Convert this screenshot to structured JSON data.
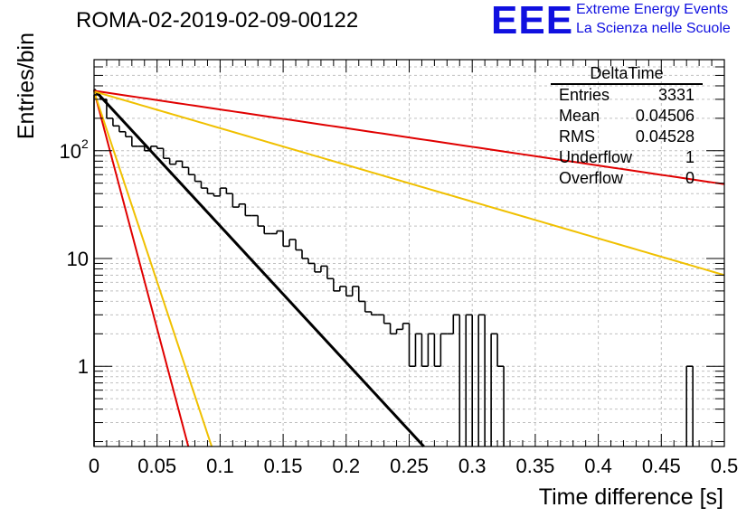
{
  "title": "ROMA-02-2019-02-09-00122",
  "logo": {
    "mark": "EEE",
    "line1": "Extreme Energy Events",
    "line2": "La Scienza nelle Scuole",
    "color": "#1010e0"
  },
  "stats": {
    "name": "DeltaTime",
    "rows": [
      {
        "label": "Entries",
        "value": "3331"
      },
      {
        "label": "Mean",
        "value": "0.04506"
      },
      {
        "label": "RMS",
        "value": "0.04528"
      },
      {
        "label": "Underflow",
        "value": "1"
      },
      {
        "label": "Overflow",
        "value": "0"
      }
    ]
  },
  "chart_data": {
    "type": "line",
    "title": "ROMA-02-2019-02-09-00122",
    "xlabel": "Time difference [s]",
    "ylabel": "Entries/bin",
    "xlim": [
      0,
      0.5
    ],
    "ylim": [
      0.18,
      700
    ],
    "yscale": "log",
    "grid": true,
    "x_ticks": [
      {
        "v": 0,
        "label": "0"
      },
      {
        "v": 0.05,
        "label": "0.05"
      },
      {
        "v": 0.1,
        "label": "0.1"
      },
      {
        "v": 0.15,
        "label": "0.15"
      },
      {
        "v": 0.2,
        "label": "0.2"
      },
      {
        "v": 0.25,
        "label": "0.25"
      },
      {
        "v": 0.3,
        "label": "0.3"
      },
      {
        "v": 0.35,
        "label": "0.35"
      },
      {
        "v": 0.4,
        "label": "0.4"
      },
      {
        "v": 0.45,
        "label": "0.45"
      },
      {
        "v": 0.5,
        "label": "0.5"
      }
    ],
    "y_ticks": [
      {
        "v": 1,
        "label": "1"
      },
      {
        "v": 10,
        "label": "10"
      },
      {
        "v": 100,
        "label": "10",
        "sup": "2"
      }
    ],
    "histogram": {
      "bin_width": 0.005,
      "color": "#000000",
      "counts": [
        330,
        300,
        200,
        170,
        150,
        135,
        110,
        110,
        100,
        110,
        105,
        85,
        75,
        80,
        70,
        60,
        52,
        45,
        40,
        38,
        45,
        40,
        30,
        32,
        25,
        25,
        20,
        17,
        17,
        18,
        13,
        15,
        12,
        10,
        9,
        7.5,
        8.5,
        6.5,
        5,
        5.5,
        4.5,
        5.5,
        4,
        3.2,
        3,
        3,
        2.5,
        2,
        2.2,
        2.5,
        1,
        2,
        1,
        2,
        1,
        2,
        2,
        3,
        0,
        3,
        0,
        3,
        0,
        2,
        1,
        0,
        0,
        0,
        0,
        0,
        0,
        0,
        0,
        0,
        0,
        0,
        0,
        0,
        0,
        0,
        0,
        0,
        0,
        0,
        0,
        0,
        0,
        0,
        0,
        0,
        0,
        0,
        0,
        0,
        1,
        0,
        0,
        0,
        0,
        0
      ]
    },
    "series": [
      {
        "color": "#000000",
        "a": 370,
        "tau": 0.0343
      },
      {
        "color": "#e00000",
        "a": 360,
        "tau": 0.2505
      },
      {
        "color": "#f0c000",
        "a": 355,
        "tau": 0.1274
      },
      {
        "color": "#e00000",
        "a": 360,
        "tau": 0.00984
      },
      {
        "color": "#f0c000",
        "a": 355,
        "tau": 0.0123
      }
    ]
  }
}
